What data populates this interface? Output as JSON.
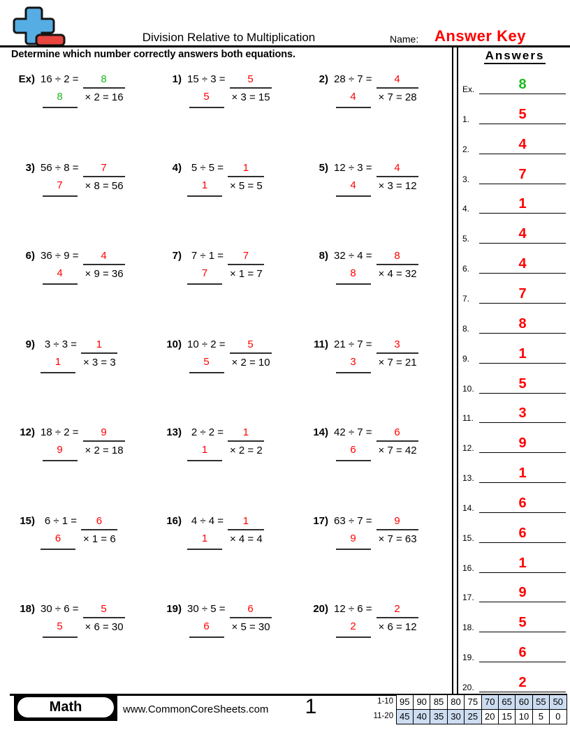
{
  "header": {
    "title": "Division Relative to Multiplication",
    "name_label": "Name:",
    "answer_key": "Answer Key",
    "instruction": "Determine which number correctly answers both equations."
  },
  "answers_panel": {
    "title": "Answers"
  },
  "problems": [
    {
      "label": "Ex)",
      "division": "16 ÷ 2 =",
      "answer": "8",
      "multiplication": "× 2 = 16",
      "color": "green"
    },
    {
      "label": "1)",
      "division": "15 ÷ 3 =",
      "answer": "5",
      "multiplication": "× 3 = 15",
      "color": "red"
    },
    {
      "label": "2)",
      "division": "28 ÷ 7 =",
      "answer": "4",
      "multiplication": "× 7 = 28",
      "color": "red"
    },
    {
      "label": "3)",
      "division": "56 ÷ 8 =",
      "answer": "7",
      "multiplication": "× 8 = 56",
      "color": "red"
    },
    {
      "label": "4)",
      "division": "5 ÷ 5 =",
      "answer": "1",
      "multiplication": "× 5 = 5",
      "color": "red"
    },
    {
      "label": "5)",
      "division": "12 ÷ 3 =",
      "answer": "4",
      "multiplication": "× 3 = 12",
      "color": "red"
    },
    {
      "label": "6)",
      "division": "36 ÷ 9 =",
      "answer": "4",
      "multiplication": "× 9 = 36",
      "color": "red"
    },
    {
      "label": "7)",
      "division": "7 ÷ 1 =",
      "answer": "7",
      "multiplication": "× 1 = 7",
      "color": "red"
    },
    {
      "label": "8)",
      "division": "32 ÷ 4 =",
      "answer": "8",
      "multiplication": "× 4 = 32",
      "color": "red"
    },
    {
      "label": "9)",
      "division": "3 ÷ 3 =",
      "answer": "1",
      "multiplication": "× 3 = 3",
      "color": "red"
    },
    {
      "label": "10)",
      "division": "10 ÷ 2 =",
      "answer": "5",
      "multiplication": "× 2 = 10",
      "color": "red"
    },
    {
      "label": "11)",
      "division": "21 ÷ 7 =",
      "answer": "3",
      "multiplication": "× 7 = 21",
      "color": "red"
    },
    {
      "label": "12)",
      "division": "18 ÷ 2 =",
      "answer": "9",
      "multiplication": "× 2 = 18",
      "color": "red"
    },
    {
      "label": "13)",
      "division": "2 ÷ 2 =",
      "answer": "1",
      "multiplication": "× 2 = 2",
      "color": "red"
    },
    {
      "label": "14)",
      "division": "42 ÷ 7 =",
      "answer": "6",
      "multiplication": "× 7 = 42",
      "color": "red"
    },
    {
      "label": "15)",
      "division": "6 ÷ 1 =",
      "answer": "6",
      "multiplication": "× 1 = 6",
      "color": "red"
    },
    {
      "label": "16)",
      "division": "4 ÷ 4 =",
      "answer": "1",
      "multiplication": "× 4 = 4",
      "color": "red"
    },
    {
      "label": "17)",
      "division": "63 ÷ 7 =",
      "answer": "9",
      "multiplication": "× 7 = 63",
      "color": "red"
    },
    {
      "label": "18)",
      "division": "30 ÷ 6 =",
      "answer": "5",
      "multiplication": "× 6 = 30",
      "color": "red"
    },
    {
      "label": "19)",
      "division": "30 ÷ 5 =",
      "answer": "6",
      "multiplication": "× 5 = 30",
      "color": "red"
    },
    {
      "label": "20)",
      "division": "12 ÷ 6 =",
      "answer": "2",
      "multiplication": "× 6 = 12",
      "color": "red"
    }
  ],
  "answers_column": [
    {
      "label": "Ex.",
      "value": "8",
      "color": "green"
    },
    {
      "label": "1.",
      "value": "5",
      "color": "red"
    },
    {
      "label": "2.",
      "value": "4",
      "color": "red"
    },
    {
      "label": "3.",
      "value": "7",
      "color": "red"
    },
    {
      "label": "4.",
      "value": "1",
      "color": "red"
    },
    {
      "label": "5.",
      "value": "4",
      "color": "red"
    },
    {
      "label": "6.",
      "value": "4",
      "color": "red"
    },
    {
      "label": "7.",
      "value": "7",
      "color": "red"
    },
    {
      "label": "8.",
      "value": "8",
      "color": "red"
    },
    {
      "label": "9.",
      "value": "1",
      "color": "red"
    },
    {
      "label": "10.",
      "value": "5",
      "color": "red"
    },
    {
      "label": "11.",
      "value": "3",
      "color": "red"
    },
    {
      "label": "12.",
      "value": "9",
      "color": "red"
    },
    {
      "label": "13.",
      "value": "1",
      "color": "red"
    },
    {
      "label": "14.",
      "value": "6",
      "color": "red"
    },
    {
      "label": "15.",
      "value": "6",
      "color": "red"
    },
    {
      "label": "16.",
      "value": "1",
      "color": "red"
    },
    {
      "label": "17.",
      "value": "9",
      "color": "red"
    },
    {
      "label": "18.",
      "value": "5",
      "color": "red"
    },
    {
      "label": "19.",
      "value": "6",
      "color": "red"
    },
    {
      "label": "20.",
      "value": "2",
      "color": "red"
    }
  ],
  "footer": {
    "subject": "Math",
    "website": "www.CommonCoreSheets.com",
    "page_number": "1",
    "score_table": {
      "rows": [
        {
          "label": "1-10",
          "values": [
            "95",
            "90",
            "85",
            "80",
            "75",
            "70",
            "65",
            "60",
            "55",
            "50"
          ],
          "shaded": [
            false,
            false,
            false,
            false,
            false,
            true,
            true,
            true,
            true,
            true
          ]
        },
        {
          "label": "11-20",
          "values": [
            "45",
            "40",
            "35",
            "30",
            "25",
            "20",
            "15",
            "10",
            "5",
            "0"
          ],
          "shaded": [
            true,
            true,
            true,
            true,
            true,
            false,
            false,
            false,
            false,
            false
          ]
        }
      ]
    }
  },
  "colors": {
    "answer_red": "#ff0000",
    "answer_green": "#1dbb1d",
    "score_shade": "#cdddf1",
    "logo_blue": "#55ade3",
    "logo_red": "#e8453e"
  }
}
